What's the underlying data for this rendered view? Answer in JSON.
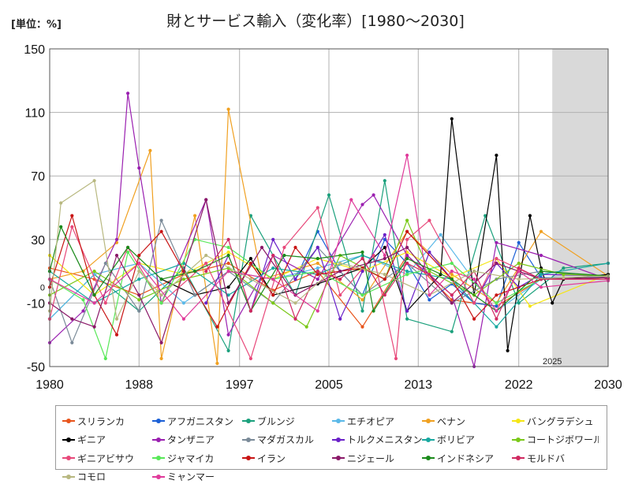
{
  "unit_label": "[単位：%]",
  "chart_data": {
    "type": "line",
    "title": "財とサービス輸入（変化率）[1980～2030]",
    "xlabel": "",
    "ylabel": "",
    "xlim": [
      1980,
      2030
    ],
    "ylim": [
      -50,
      150
    ],
    "x_ticks": [
      "1980",
      "1988",
      "1997",
      "2005",
      "2013",
      "2022",
      "2030"
    ],
    "y_ticks": [
      "-50",
      "-10",
      "30",
      "70",
      "110",
      "150"
    ],
    "zero_label": "0",
    "forecast_start": 2025,
    "forecast_label": "2025",
    "grid": true,
    "legend_position": "bottom",
    "series": [
      {
        "name": "スリランカ",
        "color": "#e8541b",
        "x": [
          1980,
          1984,
          1988,
          1992,
          1996,
          2000,
          2004,
          2008,
          2012,
          2016,
          2020,
          2024,
          2030
        ],
        "y": [
          12,
          5,
          -5,
          8,
          15,
          -2,
          10,
          -25,
          20,
          -8,
          -12,
          5,
          7
        ]
      },
      {
        "name": "アフガニスタン",
        "color": "#1a5fd6",
        "x": [
          2002,
          2004,
          2006,
          2008,
          2010,
          2012,
          2014,
          2016,
          2018,
          2020,
          2022,
          2024,
          2030
        ],
        "y": [
          5,
          35,
          10,
          -5,
          30,
          15,
          -8,
          2,
          -10,
          -12,
          28,
          6,
          6
        ]
      },
      {
        "name": "ブルンジ",
        "color": "#1aa07c",
        "x": [
          1980,
          1984,
          1988,
          1992,
          1996,
          1998,
          2002,
          2005,
          2008,
          2010,
          2012,
          2016,
          2019,
          2022,
          2026,
          2030
        ],
        "y": [
          -20,
          8,
          -15,
          12,
          -40,
          45,
          -5,
          58,
          -15,
          67,
          -20,
          -28,
          45,
          -10,
          12,
          15
        ]
      },
      {
        "name": "エチオピア",
        "color": "#5ab8e8",
        "x": [
          1980,
          1984,
          1988,
          1992,
          1996,
          2000,
          2004,
          2008,
          2012,
          2015,
          2020,
          2024,
          2030
        ],
        "y": [
          -20,
          8,
          15,
          -10,
          10,
          5,
          12,
          20,
          8,
          33,
          -15,
          5,
          6
        ]
      },
      {
        "name": "ベナン",
        "color": "#f0a020",
        "x": [
          1980,
          1983,
          1986,
          1989,
          1990,
          1993,
          1995,
          1996,
          1999,
          2004,
          2008,
          2012,
          2016,
          2020,
          2024,
          2030
        ],
        "y": [
          5,
          10,
          28,
          86,
          -45,
          45,
          -48,
          112,
          5,
          15,
          -8,
          35,
          8,
          -10,
          35,
          7
        ]
      },
      {
        "name": "バングラデシュ",
        "color": "#f5e614",
        "x": [
          1980,
          1984,
          1988,
          1992,
          1996,
          2000,
          2004,
          2008,
          2012,
          2016,
          2020,
          2023,
          2030
        ],
        "y": [
          20,
          -5,
          15,
          8,
          22,
          5,
          18,
          10,
          22,
          6,
          18,
          -12,
          8
        ]
      },
      {
        "name": "ギニア",
        "color": "#000000",
        "x": [
          1990,
          1993,
          1996,
          1998,
          2000,
          2004,
          2008,
          2010,
          2012,
          2015,
          2016,
          2018,
          2020,
          2021,
          2023,
          2024,
          2025,
          2026,
          2030
        ],
        "y": [
          5,
          -5,
          0,
          18,
          -5,
          2,
          12,
          25,
          -15,
          8,
          106,
          -5,
          83,
          -40,
          45,
          12,
          -10,
          5,
          8
        ]
      },
      {
        "name": "タンザニア",
        "color": "#9a1fb0",
        "x": [
          1980,
          1983,
          1986,
          1987,
          1988,
          1990,
          1994,
          1996,
          2000,
          2004,
          2008,
          2009,
          2012,
          2016,
          2018,
          2020,
          2024,
          2030
        ],
        "y": [
          -35,
          -15,
          30,
          122,
          75,
          -10,
          55,
          -30,
          20,
          5,
          52,
          58,
          20,
          -5,
          -50,
          28,
          20,
          5
        ]
      },
      {
        "name": "マダガスカル",
        "color": "#7a8a98",
        "x": [
          1980,
          1982,
          1985,
          1988,
          1990,
          1993,
          1996,
          2000,
          2004,
          2008,
          2012,
          2016,
          2020,
          2024,
          2030
        ],
        "y": [
          5,
          -35,
          15,
          -15,
          42,
          -5,
          10,
          -10,
          25,
          -5,
          15,
          -10,
          5,
          10,
          6
        ]
      },
      {
        "name": "トルクメニスタン",
        "color": "#6a20c8",
        "x": [
          1994,
          1996,
          1998,
          2000,
          2002,
          2004,
          2006,
          2008,
          2010,
          2012,
          2014,
          2016,
          2018,
          2020,
          2022,
          2024,
          2030
        ],
        "y": [
          -10,
          20,
          -15,
          30,
          5,
          25,
          -20,
          10,
          33,
          -15,
          22,
          5,
          -10,
          15,
          0,
          8,
          7
        ]
      },
      {
        "name": "ボリビア",
        "color": "#18a8a0",
        "x": [
          1980,
          1984,
          1988,
          1992,
          1996,
          2000,
          2004,
          2008,
          2012,
          2016,
          2020,
          2024,
          2030
        ],
        "y": [
          10,
          -10,
          5,
          15,
          -5,
          12,
          8,
          20,
          10,
          5,
          -25,
          8,
          15
        ]
      },
      {
        "name": "コートジボワール",
        "color": "#7ac818",
        "x": [
          1980,
          1984,
          1988,
          1992,
          1996,
          2000,
          2003,
          2006,
          2010,
          2012,
          2014,
          2018,
          2022,
          2026,
          2030
        ],
        "y": [
          -5,
          10,
          -8,
          5,
          12,
          -10,
          -25,
          20,
          5,
          42,
          10,
          -5,
          15,
          8,
          7
        ]
      },
      {
        "name": "ギニアビサウ",
        "color": "#e8487a",
        "x": [
          1980,
          1982,
          1985,
          1987,
          1990,
          1994,
          1998,
          2001,
          2004,
          2006,
          2009,
          2011,
          2012,
          2014,
          2018,
          2020,
          2024,
          2030
        ],
        "y": [
          -20,
          38,
          -10,
          25,
          -10,
          15,
          -45,
          25,
          50,
          -5,
          20,
          -45,
          30,
          42,
          -10,
          18,
          5,
          5
        ]
      },
      {
        "name": "ジャマイカ",
        "color": "#58e858",
        "x": [
          1980,
          1983,
          1985,
          1987,
          1990,
          1993,
          1996,
          2000,
          2004,
          2008,
          2012,
          2016,
          2020,
          2024,
          2030
        ],
        "y": [
          5,
          -8,
          -45,
          22,
          -10,
          30,
          25,
          5,
          10,
          -5,
          8,
          15,
          -10,
          5,
          6
        ]
      },
      {
        "name": "イラン",
        "color": "#c81414",
        "x": [
          1980,
          1982,
          1984,
          1986,
          1988,
          1990,
          1992,
          1995,
          1998,
          2000,
          2002,
          2004,
          2008,
          2010,
          2012,
          2016,
          2018,
          2020,
          2024,
          2030
        ],
        "y": [
          0,
          45,
          -5,
          -30,
          20,
          35,
          10,
          -25,
          15,
          -5,
          25,
          8,
          12,
          5,
          35,
          5,
          -20,
          -5,
          5,
          6
        ]
      },
      {
        "name": "ニジェール",
        "color": "#8a1868",
        "x": [
          1980,
          1982,
          1984,
          1986,
          1988,
          1990,
          1994,
          1996,
          1999,
          2002,
          2006,
          2010,
          2012,
          2016,
          2020,
          2024,
          2030
        ],
        "y": [
          -10,
          -20,
          -25,
          20,
          -5,
          -35,
          55,
          -10,
          25,
          -5,
          10,
          18,
          25,
          -10,
          15,
          5,
          6
        ]
      },
      {
        "name": "インドネシア",
        "color": "#1a8a1a",
        "x": [
          1980,
          1981,
          1984,
          1987,
          1990,
          1993,
          1996,
          1998,
          2001,
          2004,
          2008,
          2009,
          2012,
          2016,
          2020,
          2024,
          2030
        ],
        "y": [
          10,
          38,
          -5,
          25,
          5,
          10,
          20,
          -15,
          20,
          18,
          22,
          -15,
          18,
          5,
          -15,
          10,
          7
        ]
      },
      {
        "name": "モルドバ",
        "color": "#d02860",
        "x": [
          1994,
          1996,
          1998,
          2000,
          2002,
          2004,
          2006,
          2008,
          2010,
          2012,
          2014,
          2016,
          2018,
          2020,
          2022,
          2024,
          2030
        ],
        "y": [
          10,
          30,
          -15,
          20,
          -20,
          10,
          5,
          18,
          -5,
          15,
          8,
          -5,
          10,
          -20,
          12,
          5,
          5
        ]
      },
      {
        "name": "コモロ",
        "color": "#b8b880",
        "x": [
          1980,
          1981,
          1984,
          1986,
          1988,
          1990,
          1994,
          1998,
          2002,
          2006,
          2010,
          2014,
          2018,
          2022,
          2026,
          2030
        ],
        "y": [
          -15,
          53,
          67,
          -20,
          10,
          -5,
          20,
          5,
          -10,
          15,
          8,
          -5,
          10,
          5,
          6,
          7
        ]
      },
      {
        "name": "ミャンマー",
        "color": "#e03a9a",
        "x": [
          1980,
          1984,
          1988,
          1992,
          1996,
          2000,
          2004,
          2007,
          2010,
          2012,
          2014,
          2016,
          2018,
          2020,
          2022,
          2024,
          2030
        ],
        "y": [
          5,
          -10,
          15,
          -20,
          10,
          5,
          -15,
          55,
          20,
          83,
          -5,
          10,
          5,
          -15,
          10,
          0,
          4
        ]
      }
    ]
  }
}
